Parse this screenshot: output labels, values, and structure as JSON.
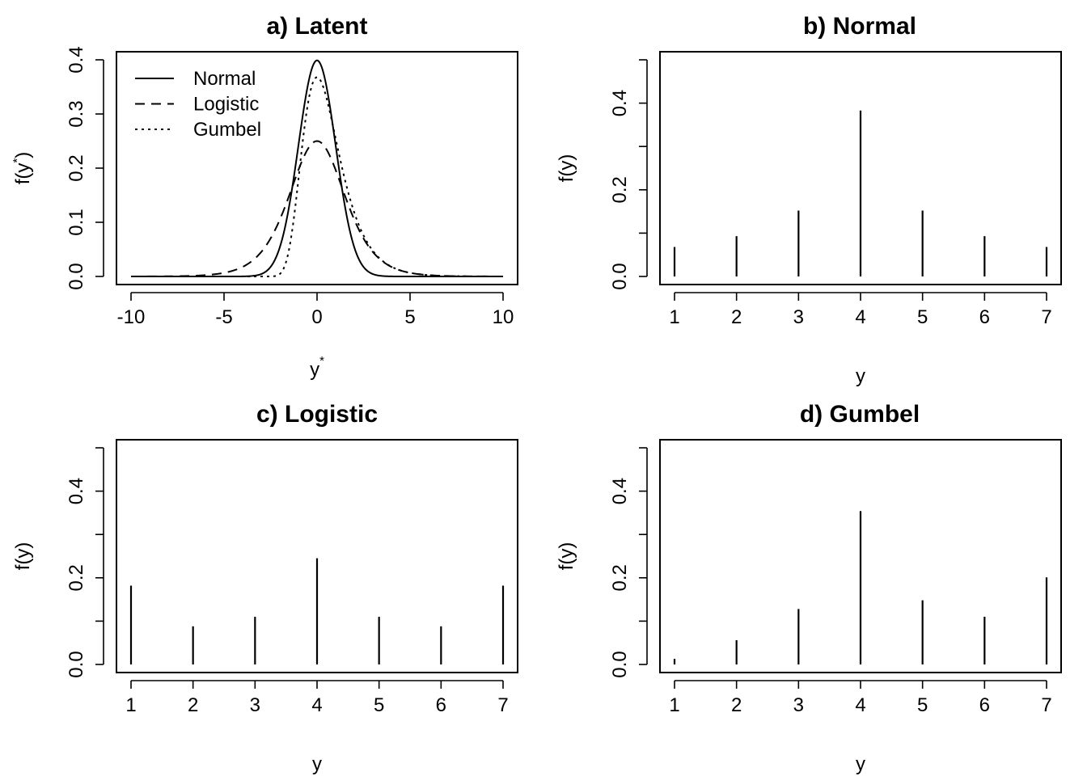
{
  "chart_data": [
    {
      "id": "a",
      "type": "line",
      "title": "a) Latent",
      "xlabel_base": "y",
      "xlabel_sup": "*",
      "ylabel_base": "f",
      "ylabel_inner": "y",
      "ylabel_sup": "*",
      "xlim": [
        -10,
        10
      ],
      "ylim": [
        0,
        0.4
      ],
      "x_ticks": [
        -10,
        -5,
        0,
        5,
        10
      ],
      "x_tick_labels": [
        "-10",
        "-5",
        "0",
        "5",
        "10"
      ],
      "y_ticks": [
        0,
        0.1,
        0.2,
        0.3,
        0.4
      ],
      "y_tick_labels": [
        "0.0",
        "0.1",
        "0.2",
        "0.3",
        "0.4"
      ],
      "legend_position": "top-left",
      "series": [
        {
          "name": "Normal",
          "dist": "normal",
          "dash": "solid"
        },
        {
          "name": "Logistic",
          "dist": "logistic",
          "dash": "dashed"
        },
        {
          "name": "Gumbel",
          "dist": "gumbel",
          "dash": "dotted"
        }
      ]
    },
    {
      "id": "b",
      "type": "bar",
      "title": "b) Normal",
      "xlabel": "y",
      "ylabel_base": "f",
      "ylabel_inner": "y",
      "xlim": [
        1,
        7
      ],
      "ylim": [
        0,
        0.5
      ],
      "categories": [
        "1",
        "2",
        "3",
        "4",
        "5",
        "6",
        "7"
      ],
      "values": [
        0.068,
        0.093,
        0.152,
        0.383,
        0.152,
        0.093,
        0.068
      ],
      "y_ticks": [
        0,
        0.1,
        0.2,
        0.3,
        0.4,
        0.5
      ],
      "y_tick_labels": [
        "0.0",
        "",
        "0.2",
        "",
        "0.4",
        ""
      ]
    },
    {
      "id": "c",
      "type": "bar",
      "title": "c) Logistic",
      "xlabel": "y",
      "ylabel_base": "f",
      "ylabel_inner": "y",
      "xlim": [
        1,
        7
      ],
      "ylim": [
        0,
        0.5
      ],
      "categories": [
        "1",
        "2",
        "3",
        "4",
        "5",
        "6",
        "7"
      ],
      "values": [
        0.182,
        0.088,
        0.11,
        0.245,
        0.11,
        0.088,
        0.182
      ],
      "y_ticks": [
        0,
        0.1,
        0.2,
        0.3,
        0.4,
        0.5
      ],
      "y_tick_labels": [
        "0.0",
        "",
        "0.2",
        "",
        "0.4",
        ""
      ]
    },
    {
      "id": "d",
      "type": "bar",
      "title": "d) Gumbel",
      "xlabel": "y",
      "ylabel_base": "f",
      "ylabel_inner": "y",
      "xlim": [
        1,
        7
      ],
      "ylim": [
        0,
        0.5
      ],
      "categories": [
        "1",
        "2",
        "3",
        "4",
        "5",
        "6",
        "7"
      ],
      "values": [
        0.013,
        0.056,
        0.128,
        0.354,
        0.148,
        0.11,
        0.201
      ],
      "y_ticks": [
        0,
        0.1,
        0.2,
        0.3,
        0.4,
        0.5
      ],
      "y_tick_labels": [
        "0.0",
        "",
        "0.2",
        "",
        "0.4",
        ""
      ]
    }
  ]
}
